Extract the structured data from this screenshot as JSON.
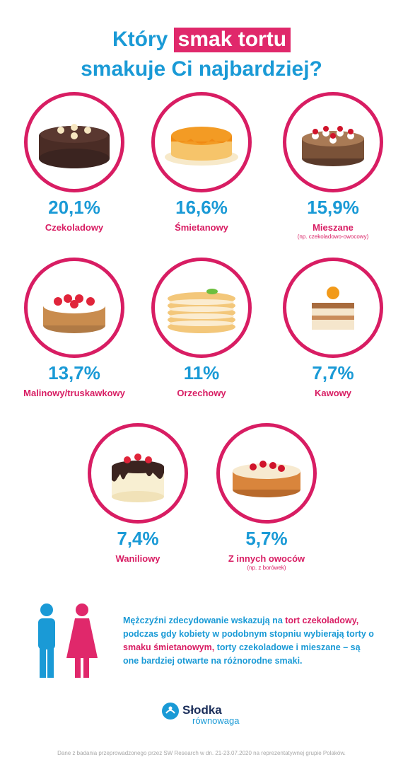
{
  "title": {
    "line1_pre": "Który",
    "line1_highlight": "smak tortu",
    "line2": "smakuje Ci najbardziej?"
  },
  "chart_data": {
    "type": "table",
    "categories": [
      "Czekoladowy",
      "Śmietanowy",
      "Mieszane",
      "Malinowy/truskawkowy",
      "Orzechowy",
      "Kawowy",
      "Waniliowy",
      "Z innych owoców"
    ],
    "values": [
      20.1,
      16.6,
      15.9,
      13.7,
      11,
      7.7,
      7.4,
      5.7
    ],
    "items": [
      {
        "value_label": "20,1%",
        "label": "Czekoladowy",
        "note": "",
        "icon": "chocolate-cake-icon"
      },
      {
        "value_label": "16,6%",
        "label": "Śmietanowy",
        "note": "",
        "icon": "cream-cake-icon"
      },
      {
        "value_label": "15,9%",
        "label": "Mieszane",
        "note": "(np. czekoladowo-owocowy)",
        "icon": "cherry-cake-icon"
      },
      {
        "value_label": "13,7%",
        "label": "Malinowy/truskawkowy",
        "note": "",
        "icon": "strawberry-cake-icon"
      },
      {
        "value_label": "11%",
        "label": "Orzechowy",
        "note": "",
        "icon": "layer-cake-icon"
      },
      {
        "value_label": "7,7%",
        "label": "Kawowy",
        "note": "",
        "icon": "tiramisu-icon"
      },
      {
        "value_label": "7,4%",
        "label": "Waniliowy",
        "note": "",
        "icon": "vanilla-cake-icon"
      },
      {
        "value_label": "5,7%",
        "label": "Z innych owoców",
        "note": "(np. z borówek)",
        "icon": "fruit-cake-icon"
      }
    ]
  },
  "message": {
    "p1": "Mężczyźni zdecydowanie wskazują na ",
    "h1": "tort czekoladowy,",
    "p2": " podczas gdy kobiety w podobnym stopniu wybierają torty o ",
    "h2": "smaku śmietanowym,",
    "p3": " torty czekoladowe i mieszane – są one bardziej otwarte na różnorodne smaki."
  },
  "logo": {
    "line1": "Słodka",
    "line2": "równowaga"
  },
  "footer": "Dane z badania przeprowadzonego przez SW Research w dn. 21-23.07.2020 na reprezentatywnej grupie Polaków.",
  "colors": {
    "blue": "#1a9ad6",
    "pink": "#d81d63"
  }
}
